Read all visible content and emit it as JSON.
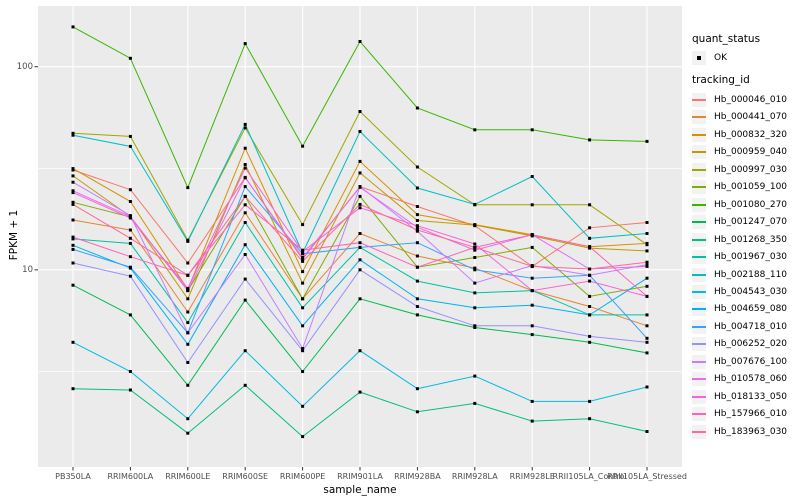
{
  "style": {
    "background": "#FFFFFF",
    "panel_background": "#EBEBEB",
    "grid_major_color": "#FFFFFF",
    "grid_minor_color": "#FFFFFF",
    "axis_tick_color": "#333333",
    "tick_label_color": "#4D4D4D",
    "point_color": "#000000",
    "legend_key_background": "#F2F2F2"
  },
  "legend": {
    "quant_status": {
      "title": "quant_status",
      "items": [
        {
          "label": "OK",
          "marker": "point",
          "color": "#000000"
        }
      ]
    },
    "tracking": {
      "title": "tracking_id"
    }
  },
  "chart_data": {
    "type": "line",
    "title": "",
    "xlabel": "sample_name",
    "ylabel": "FPKM + 1",
    "y_scale": "log10",
    "ylim": [
      1.07,
      199
    ],
    "y_major_ticks": [
      100,
      10
    ],
    "y_tick_labels": [
      "100",
      "10"
    ],
    "y_minor_ticks": [
      31.623,
      3.162
    ],
    "grid": true,
    "legend_position": "right",
    "marker": "square-point",
    "categories": [
      "PB350LA",
      "RRIM600LA",
      "RRIM600LE",
      "RRIM600SE",
      "RRIM600PE",
      "RRIM901LA",
      "RRIM928BA",
      "RRIM928LA",
      "RRIM928LE",
      "RRII105LA_Control",
      "RRII105LA_Stressed"
    ],
    "series": [
      {
        "name": "Hb_000046_010",
        "color": "#F8766D",
        "values": [
          31,
          24.8,
          10.8,
          28.5,
          11.3,
          25.7,
          20.5,
          16.5,
          10.4,
          16.1,
          17.1
        ]
      },
      {
        "name": "Hb_000441_070",
        "color": "#EA8331",
        "values": [
          17.6,
          15.7,
          6.2,
          19.1,
          7.2,
          15.1,
          11.7,
          10.2,
          7.9,
          6.6,
          5.3
        ]
      },
      {
        "name": "Hb_000832_320",
        "color": "#D89000",
        "values": [
          31.5,
          21.7,
          8.0,
          39.7,
          9.8,
          34.2,
          18.7,
          16.7,
          14.9,
          13.0,
          13.5
        ]
      },
      {
        "name": "Hb_000959_040",
        "color": "#C09B00",
        "values": [
          29,
          18.3,
          7.2,
          33,
          8.6,
          30,
          17.5,
          16.6,
          14.7,
          12.8,
          12.4
        ]
      },
      {
        "name": "Hb_000997_030",
        "color": "#A3A500",
        "values": [
          47,
          45.4,
          14,
          50,
          16.7,
          60.2,
          32.1,
          20.9,
          20.9,
          20.9,
          13.3
        ]
      },
      {
        "name": "Hb_001059_100",
        "color": "#7CAE00",
        "values": [
          21.5,
          18.2,
          7.9,
          23,
          7.2,
          23,
          10.3,
          11.5,
          12.9,
          7.4,
          8.3
        ]
      },
      {
        "name": "Hb_001080_270",
        "color": "#39B600",
        "values": [
          157,
          110,
          25.4,
          130,
          40.6,
          133,
          62.6,
          48.9,
          48.9,
          43.6,
          42.9
        ]
      },
      {
        "name": "Hb_001247_070",
        "color": "#00BB4E",
        "values": [
          8.4,
          6.0,
          2.7,
          7.1,
          3.16,
          7.2,
          6.0,
          5.2,
          4.8,
          4.4,
          3.9
        ]
      },
      {
        "name": "Hb_001268_350",
        "color": "#00BF7D",
        "values": [
          2.6,
          2.56,
          1.57,
          2.7,
          1.51,
          2.5,
          2.0,
          2.2,
          1.8,
          1.85,
          1.6
        ]
      },
      {
        "name": "Hb_001967_030",
        "color": "#00C1A3",
        "values": [
          14.2,
          13.5,
          5.5,
          17.1,
          6.5,
          12.9,
          8.8,
          7.7,
          7.9,
          6.0,
          6.0
        ]
      },
      {
        "name": "Hb_002188_110",
        "color": "#00BFC4",
        "values": [
          46,
          40.5,
          13.8,
          52,
          12.1,
          48,
          25.3,
          21,
          28.8,
          14.3,
          15.1
        ]
      },
      {
        "name": "Hb_004543_030",
        "color": "#00BAE0",
        "values": [
          4.4,
          3.16,
          1.85,
          4.0,
          2.13,
          4.0,
          2.6,
          3.0,
          2.25,
          2.25,
          2.65
        ]
      },
      {
        "name": "Hb_004659_080",
        "color": "#00B0F6",
        "values": [
          13.2,
          10.2,
          4.3,
          13.3,
          5.3,
          11.2,
          7.2,
          6.5,
          6.7,
          6.0,
          9.1
        ]
      },
      {
        "name": "Hb_004718_010",
        "color": "#35A2FF",
        "values": [
          12.6,
          10.3,
          4.9,
          25.7,
          12.0,
          12.9,
          13.6,
          10.0,
          9.1,
          9.4,
          4.6
        ]
      },
      {
        "name": "Hb_006252_020",
        "color": "#9590FF",
        "values": [
          10.8,
          9.3,
          3.5,
          9.0,
          4.0,
          10.0,
          6.6,
          5.3,
          5.3,
          4.7,
          4.4
        ]
      },
      {
        "name": "Hb_007676_100",
        "color": "#C77CFF",
        "values": [
          27,
          18.5,
          4.9,
          11.9,
          4.1,
          25.7,
          15.5,
          8.6,
          10.5,
          9.4,
          10.6
        ]
      },
      {
        "name": "Hb_010578_060",
        "color": "#E76BF3",
        "values": [
          24.5,
          18.3,
          7.9,
          28.4,
          11.5,
          25.5,
          16.2,
          12.5,
          14.9,
          10.1,
          10.4
        ]
      },
      {
        "name": "Hb_018133_050",
        "color": "#FA62DB",
        "values": [
          24,
          18.0,
          8.1,
          31.7,
          12.3,
          20.2,
          16.5,
          13.4,
          7.9,
          8.8,
          7.4
        ]
      },
      {
        "name": "Hb_157966_010",
        "color": "#FF62BC",
        "values": [
          14.5,
          11.6,
          9.4,
          20.9,
          12.5,
          13.6,
          10.3,
          12.9,
          14.9,
          13.0,
          7.4
        ]
      },
      {
        "name": "Hb_183963_030",
        "color": "#FF6A98",
        "values": [
          21,
          14.3,
          9.4,
          23,
          11.0,
          21,
          15.7,
          12.9,
          10.4,
          10.1,
          10.9
        ]
      }
    ]
  }
}
